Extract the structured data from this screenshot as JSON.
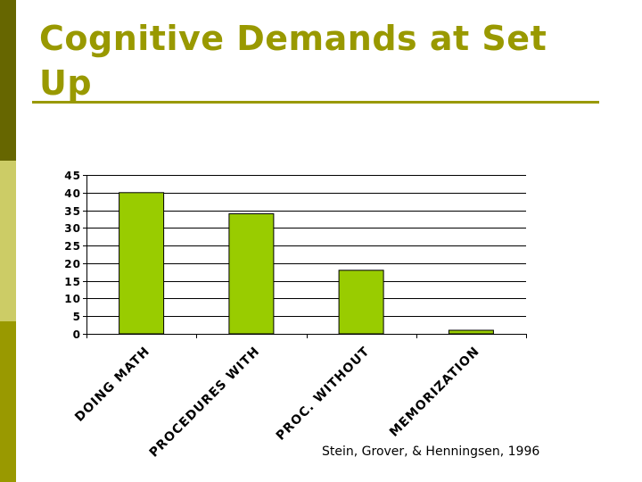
{
  "slide": {
    "title": "Cognitive Demands at Set Up",
    "citation": "Stein, Grover, & Henningsen, 1996"
  },
  "colors": {
    "title": "#999900",
    "sidebar_top": "#666600",
    "sidebar_middle": "#cccc66",
    "sidebar_bottom": "#999900",
    "bar_fill": "#99cc00"
  },
  "chart_data": {
    "type": "bar",
    "categories": [
      "DOING MATH",
      "PROCEDURES WITH",
      "PROC. WITHOUT",
      "MEMORIZATION"
    ],
    "values": [
      40,
      34,
      18,
      1
    ],
    "title": "",
    "xlabel": "",
    "ylabel": "",
    "ylim": [
      0,
      45
    ],
    "yticks": [
      0,
      5,
      10,
      15,
      20,
      25,
      30,
      35,
      40,
      45
    ],
    "grid": true,
    "legend": "none"
  }
}
